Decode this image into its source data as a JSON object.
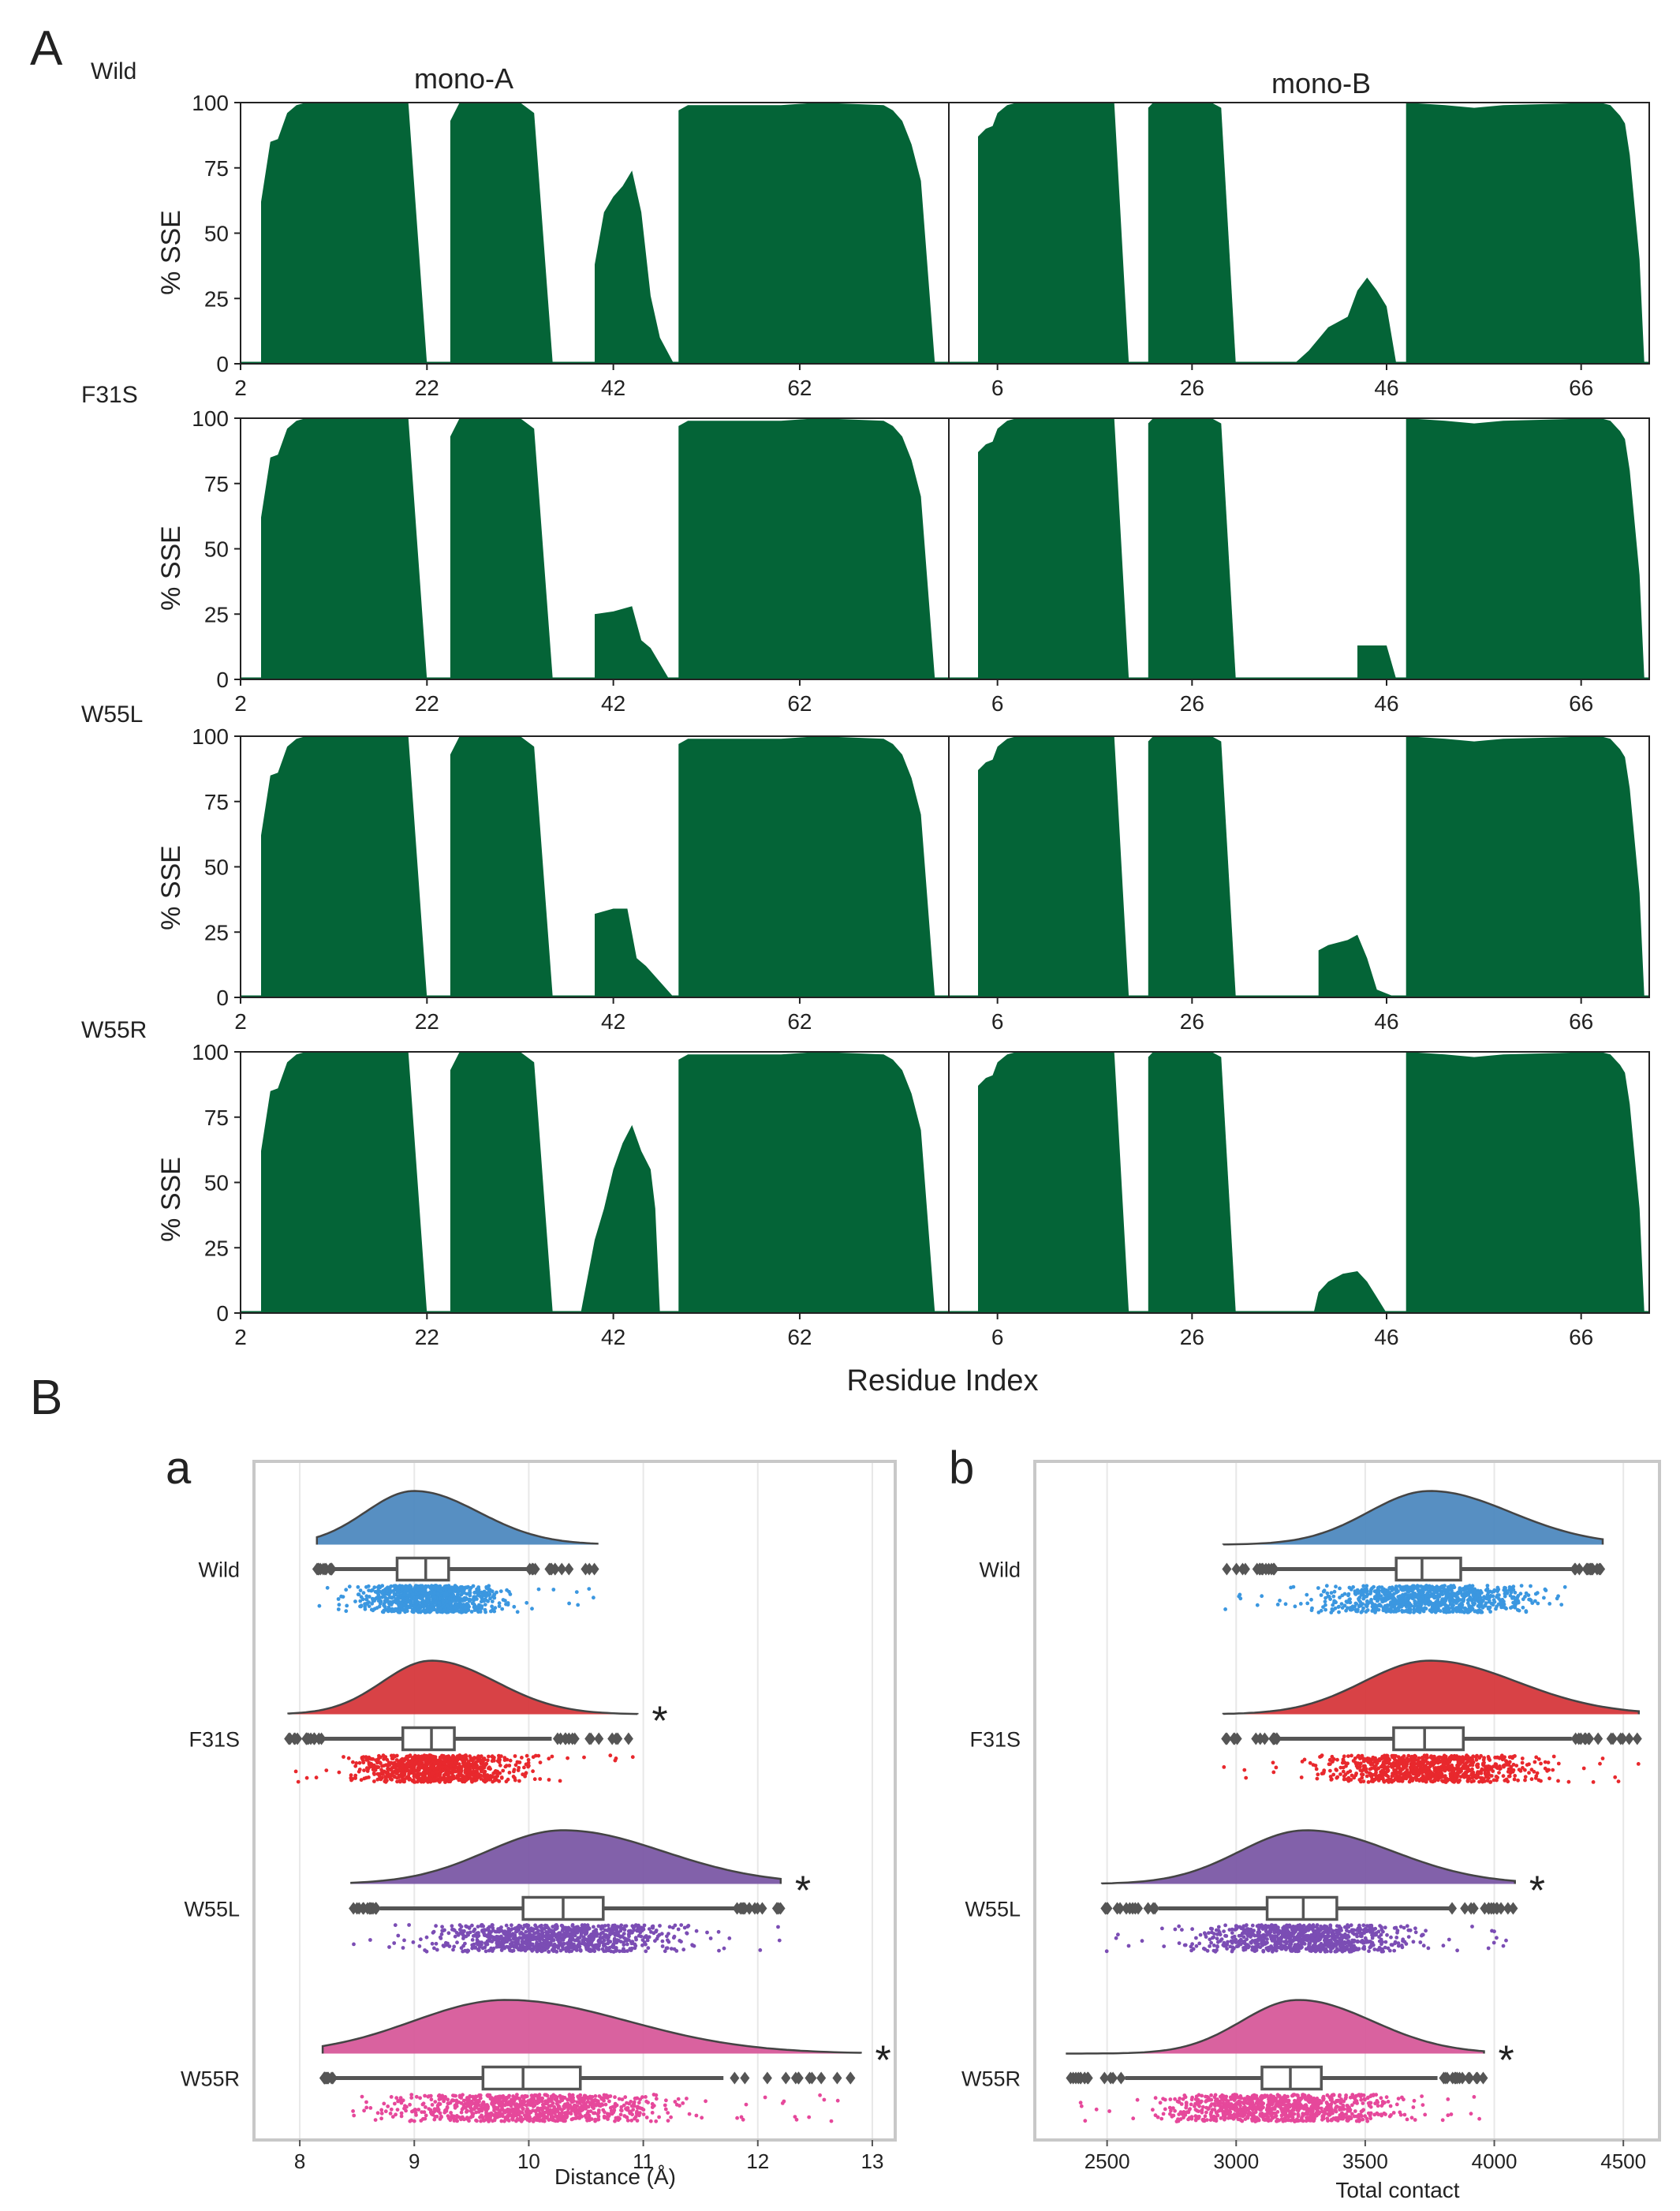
{
  "colors": {
    "sse_fill": "#046437",
    "frame": "#222222",
    "panel_border": "#c8c8c8",
    "grid": "#e8e8e8",
    "box_stroke": "#555555",
    "outlier": "#555555"
  },
  "panel_A": {
    "letter": "A",
    "columns": [
      "mono-A",
      "mono-B"
    ],
    "ylabel": "% SSE",
    "xlabel": "Residue Index",
    "chart_data": {
      "type": "area",
      "ylim": [
        0,
        100
      ],
      "yticks": [
        0,
        25,
        50,
        75,
        100
      ],
      "panels": {
        "monoA": {
          "xlim": [
            2,
            78
          ],
          "xticks": [
            2,
            22,
            42,
            62
          ],
          "segments": [
            {
              "name": "helix-1",
              "points": [
                [
                  4.2,
                  0
                ],
                [
                  4.2,
                  62
                ],
                [
                  5.2,
                  85
                ],
                [
                  6,
                  86
                ],
                [
                  7,
                  96
                ],
                [
                  8,
                  99
                ],
                [
                  9,
                  100
                ],
                [
                  20,
                  100
                ],
                [
                  22,
                  0
                ]
              ]
            },
            {
              "name": "helix-2",
              "points": [
                [
                  24.5,
                  0
                ],
                [
                  24.5,
                  93
                ],
                [
                  25.5,
                  100
                ],
                [
                  32,
                  100
                ],
                [
                  33.5,
                  96
                ],
                [
                  35.5,
                  0
                ]
              ]
            },
            {
              "name": "helix-3",
              "points": [
                [
                  40,
                  0
                ],
                [
                  40,
                  38
                ],
                [
                  41,
                  58
                ],
                [
                  42,
                  64
                ],
                [
                  43,
                  68
                ],
                [
                  44,
                  74
                ],
                [
                  45,
                  58
                ],
                [
                  46,
                  26
                ],
                [
                  47,
                  10
                ],
                [
                  48.5,
                  0
                ]
              ]
            },
            {
              "name": "helix-4",
              "points": [
                [
                  49,
                  0
                ],
                [
                  49,
                  97
                ],
                [
                  50,
                  99
                ],
                [
                  60,
                  99
                ],
                [
                  64,
                  100
                ],
                [
                  71,
                  99
                ],
                [
                  72,
                  97
                ],
                [
                  73,
                  93
                ],
                [
                  74,
                  84
                ],
                [
                  75,
                  70
                ],
                [
                  76.5,
                  0
                ]
              ]
            }
          ]
        },
        "monoB": {
          "xlim": [
            1,
            73
          ],
          "xticks": [
            6,
            26,
            46,
            66
          ],
          "segments": [
            {
              "name": "helix-1",
              "points": [
                [
                  4,
                  0
                ],
                [
                  4,
                  87
                ],
                [
                  4.8,
                  90
                ],
                [
                  5.5,
                  91
                ],
                [
                  6,
                  96
                ],
                [
                  7,
                  99
                ],
                [
                  8,
                  100
                ],
                [
                  18,
                  100
                ],
                [
                  19.5,
                  0
                ]
              ]
            },
            {
              "name": "helix-2",
              "points": [
                [
                  21.5,
                  0
                ],
                [
                  21.5,
                  98
                ],
                [
                  22,
                  100
                ],
                [
                  28,
                  100
                ],
                [
                  29,
                  98
                ],
                [
                  30.5,
                  0
                ]
              ]
            },
            {
              "name": "helix-3",
              "points": [
                [
                  36.5,
                  0
                ],
                [
                  38,
                  5
                ],
                [
                  40,
                  14
                ],
                [
                  42,
                  18
                ],
                [
                  43,
                  28
                ],
                [
                  44,
                  33
                ],
                [
                  45,
                  28
                ],
                [
                  46,
                  22
                ],
                [
                  47,
                  0
                ]
              ]
            },
            {
              "name": "helix-4",
              "points": [
                [
                  48,
                  0
                ],
                [
                  48,
                  100
                ],
                [
                  52,
                  99
                ],
                [
                  55,
                  98
                ],
                [
                  58,
                  99
                ],
                [
                  68,
                  100
                ],
                [
                  69,
                  99
                ],
                [
                  70,
                  95
                ],
                [
                  70.5,
                  92
                ],
                [
                  71,
                  80
                ],
                [
                  71.5,
                  60
                ],
                [
                  72,
                  40
                ],
                [
                  72.5,
                  0
                ]
              ]
            }
          ]
        }
      },
      "rows": [
        {
          "label": "Wild",
          "monoA": {
            "helix-3": [
              [
                40,
                0
              ],
              [
                40,
                38
              ],
              [
                41,
                58
              ],
              [
                42,
                64
              ],
              [
                43,
                68
              ],
              [
                44,
                74
              ],
              [
                45,
                58
              ],
              [
                46,
                26
              ],
              [
                47,
                10
              ],
              [
                48.5,
                0
              ]
            ]
          },
          "monoB": {
            "helix-3": [
              [
                36.5,
                0
              ],
              [
                38,
                5
              ],
              [
                40,
                14
              ],
              [
                42,
                18
              ],
              [
                43,
                28
              ],
              [
                44,
                33
              ],
              [
                45,
                28
              ],
              [
                46,
                22
              ],
              [
                47,
                0
              ]
            ]
          }
        },
        {
          "label": "F31S",
          "monoA": {
            "helix-3": [
              [
                40,
                0
              ],
              [
                40,
                25
              ],
              [
                42,
                26
              ],
              [
                44,
                28
              ],
              [
                45,
                15
              ],
              [
                46,
                12
              ],
              [
                47,
                6
              ],
              [
                48,
                0
              ]
            ]
          },
          "monoB": {
            "helix-3": [
              [
                43,
                0
              ],
              [
                43,
                13
              ],
              [
                46,
                13
              ],
              [
                47,
                0
              ]
            ]
          }
        },
        {
          "label": "W55L",
          "monoA": {
            "helix-3": [
              [
                40,
                0
              ],
              [
                40,
                32
              ],
              [
                42,
                34
              ],
              [
                43.5,
                34
              ],
              [
                44.5,
                15
              ],
              [
                45.5,
                12
              ],
              [
                47,
                6
              ],
              [
                48.5,
                0
              ]
            ]
          },
          "monoB": {
            "helix-3": [
              [
                39,
                0
              ],
              [
                39,
                18
              ],
              [
                40,
                20
              ],
              [
                42,
                22
              ],
              [
                43,
                24
              ],
              [
                44,
                15
              ],
              [
                45,
                3
              ],
              [
                47,
                0
              ]
            ]
          }
        },
        {
          "label": "W55R",
          "monoA": {
            "helix-3": [
              [
                38.5,
                0
              ],
              [
                40,
                28
              ],
              [
                41,
                40
              ],
              [
                42,
                55
              ],
              [
                43,
                65
              ],
              [
                44,
                72
              ],
              [
                45,
                62
              ],
              [
                46,
                55
              ],
              [
                46.5,
                40
              ],
              [
                47,
                0
              ]
            ]
          },
          "monoB": {
            "helix-3": [
              [
                38.5,
                0
              ],
              [
                39,
                8
              ],
              [
                40,
                12
              ],
              [
                41.5,
                15
              ],
              [
                43,
                16
              ],
              [
                44,
                12
              ],
              [
                45,
                6
              ],
              [
                46,
                0
              ]
            ]
          }
        }
      ]
    }
  },
  "panel_B": {
    "letter": "B",
    "plots": [
      {
        "letter": "a",
        "xlabel": "Distance (Å)",
        "chart_data": {
          "type": "raincloud",
          "xlim": [
            7.6,
            13.2
          ],
          "xticks": [
            8,
            9,
            10,
            11,
            12,
            13
          ],
          "groups": [
            {
              "label": "Wild",
              "color": "#4e89bf",
              "point_color": "#3b97e0",
              "mode": 9.0,
              "min": 8.15,
              "max": 10.6,
              "q1": 8.85,
              "median": 9.1,
              "q3": 9.3,
              "whisker_lo": 8.3,
              "whisker_hi": 10.0,
              "sig": ""
            },
            {
              "label": "F31S",
              "color": "#d6383c",
              "point_color": "#e8282d",
              "mode": 9.15,
              "min": 7.9,
              "max": 10.95,
              "q1": 8.9,
              "median": 9.15,
              "q3": 9.35,
              "whisker_lo": 8.2,
              "whisker_hi": 10.2,
              "sig": "*"
            },
            {
              "label": "W55L",
              "color": "#7b59a5",
              "point_color": "#7b4db4",
              "mode": 10.3,
              "min": 8.45,
              "max": 12.2,
              "q1": 9.95,
              "median": 10.3,
              "q3": 10.65,
              "whisker_lo": 8.7,
              "whisker_hi": 11.8,
              "sig": "*"
            },
            {
              "label": "W55R",
              "color": "#d75a9a",
              "point_color": "#e6489b",
              "mode": 9.8,
              "min": 8.2,
              "max": 12.9,
              "q1": 9.6,
              "median": 9.95,
              "q3": 10.45,
              "whisker_lo": 8.3,
              "whisker_hi": 11.7,
              "sig": "*"
            }
          ]
        }
      },
      {
        "letter": "b",
        "xlabel": "Total contact",
        "chart_data": {
          "type": "raincloud",
          "xlim": [
            2220,
            4640
          ],
          "xticks": [
            2500,
            3000,
            3500,
            4000,
            4500
          ],
          "groups": [
            {
              "label": "Wild",
              "color": "#4e89bf",
              "point_color": "#3b97e0",
              "mode": 3750,
              "min": 2950,
              "max": 4420,
              "q1": 3620,
              "median": 3720,
              "q3": 3870,
              "whisker_lo": 3150,
              "whisker_hi": 4300,
              "sig": ""
            },
            {
              "label": "F31S",
              "color": "#d6383c",
              "point_color": "#e8282d",
              "mode": 3750,
              "min": 2950,
              "max": 4560,
              "q1": 3610,
              "median": 3730,
              "q3": 3880,
              "whisker_lo": 3160,
              "whisker_hi": 4300,
              "sig": ""
            },
            {
              "label": "W55L",
              "color": "#7b59a5",
              "point_color": "#7b4db4",
              "mode": 3270,
              "min": 2480,
              "max": 4080,
              "q1": 3120,
              "median": 3260,
              "q3": 3390,
              "whisker_lo": 2700,
              "whisker_hi": 3830,
              "sig": "*"
            },
            {
              "label": "W55R",
              "color": "#d75a9a",
              "point_color": "#e6489b",
              "mode": 3240,
              "min": 2340,
              "max": 3960,
              "q1": 3100,
              "median": 3210,
              "q3": 3330,
              "whisker_lo": 2570,
              "whisker_hi": 3780,
              "sig": "*"
            }
          ]
        }
      }
    ]
  }
}
